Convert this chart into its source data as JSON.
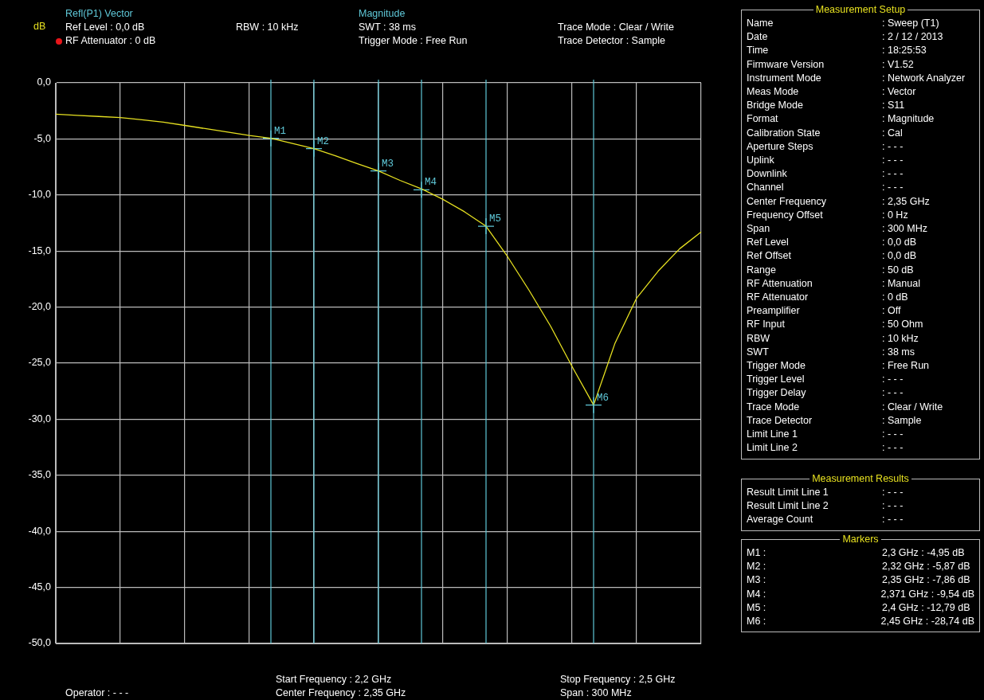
{
  "chart_data": [
    {
      "type": "line",
      "title": "Refl(P1) Vector",
      "subtitle": "Magnitude",
      "ylabel": "dB",
      "categories": [
        null,
        null,
        null,
        null,
        null,
        null,
        null,
        null,
        null,
        null,
        null,
        null,
        null,
        null,
        null,
        null,
        null,
        null,
        null,
        null,
        null,
        null,
        null,
        null,
        null,
        null,
        null,
        null,
        null,
        null,
        null
      ],
      "series": [
        {
          "color": "#e6e020",
          "values": [
            -2.8,
            -2.9,
            -3.0,
            -3.1,
            -3.3,
            -3.5,
            -3.8,
            -4.1,
            -4.4,
            -4.7,
            -4.95,
            -5.4,
            -5.87,
            -6.5,
            -7.2,
            -7.86,
            -8.7,
            -9.45,
            -10.4,
            -11.5,
            -12.79,
            -15.5,
            -18.5,
            -21.7,
            -25.3,
            -28.74,
            -23.2,
            -19.2,
            -16.8,
            -14.8,
            -13.3
          ]
        },
        {
          "type": "scatter",
          "color": "#5fc8d8",
          "marker": "cross",
          "values": [
            null,
            null,
            null,
            null,
            null,
            null,
            null,
            null,
            null,
            null,
            -4.95,
            null,
            -5.87,
            null,
            null,
            -7.86,
            null,
            -9.54,
            null,
            null,
            -12.79,
            null,
            null,
            null,
            null,
            -28.74,
            null,
            null,
            null,
            null,
            null
          ],
          "value_labels": [
            null,
            null,
            null,
            null,
            null,
            null,
            null,
            null,
            null,
            null,
            "M1",
            null,
            "M2",
            null,
            null,
            "M3",
            null,
            "M4",
            null,
            null,
            "M5",
            null,
            null,
            null,
            null,
            "M6",
            null,
            null,
            null,
            null,
            null
          ]
        }
      ],
      "ylim": [
        -50,
        0
      ],
      "yticks": [
        {
          "value": 0,
          "label": "0,0"
        },
        {
          "value": -5,
          "label": "-5,0"
        },
        {
          "value": -10,
          "label": "-10,0"
        },
        {
          "value": -15,
          "label": "-15,0"
        },
        {
          "value": -20,
          "label": "-20,0"
        },
        {
          "value": -25,
          "label": "-25,0"
        },
        {
          "value": -30,
          "label": "-30,0"
        },
        {
          "value": -35,
          "label": "-35,0"
        },
        {
          "value": -40,
          "label": "-40,0"
        },
        {
          "value": -45,
          "label": "-45,0"
        },
        {
          "value": -50,
          "label": "-50,0"
        }
      ],
      "tick_labels": "y",
      "grid": true,
      "legend": false,
      "marker": "none",
      "line_style": "solid",
      "annotations": [
        "Ref Level : 0,0 dB",
        "RF Attenuator : 0 dB",
        "RBW : 10 kHz",
        "SWT : 38 ms",
        "Trigger Mode : Free Run",
        "Trace Mode : Clear / Write",
        "Trace Detector : Sample",
        "Start Frequency : 2,2 GHz",
        "Center Frequency : 2,35 GHz",
        "Stop Frequency : 2,5 GHz",
        "Span : 300 MHz",
        "Operator : - - -"
      ]
    },
    {
      "type": "other",
      "title": "Measurement Setup",
      "annotations": [
        "Name",
        ": Sweep (T1)",
        "Date",
        ": 2 / 12 / 2013",
        "Time",
        ": 18:25:53",
        "Firmware Version",
        ": V1.52",
        "Instrument Mode",
        ": Network Analyzer",
        "Meas Mode",
        ": Vector",
        "Bridge Mode",
        ": S11",
        "Format",
        ": Magnitude",
        "Calibration State",
        ": Cal",
        "Aperture Steps",
        ": - - -",
        "Uplink",
        ": - - -",
        "Downlink",
        ": - - -",
        "Channel",
        ": - - -",
        "Center Frequency",
        ": 2,35 GHz",
        "Frequency Offset",
        ": 0 Hz",
        "Span",
        ": 300 MHz",
        "Ref Level",
        ": 0,0 dB",
        "Ref Offset",
        ": 0,0 dB",
        "Range",
        ": 50 dB",
        "RF Attenuation",
        ": Manual",
        "RF Attenuator",
        ": 0 dB",
        "Preamplifier",
        ": Off",
        "RF Input",
        ": 50 Ohm",
        "RBW",
        ": 10 kHz",
        "SWT",
        ": 38 ms",
        "Trigger Mode",
        ": Free Run",
        "Trigger Level",
        ": - - -",
        "Trigger Delay",
        ": - - -",
        "Trace Mode",
        ": Clear / Write",
        "Trace Detector",
        ": Sample",
        "Limit Line 1",
        ": - - -",
        "Limit Line 2",
        ": - - -"
      ]
    },
    {
      "type": "other",
      "title": "Measurement Results",
      "annotations": [
        "Result Limit Line 1",
        ": - - -",
        "Result Limit Line 2",
        ": - - -",
        "Average Count",
        ": - - -"
      ]
    },
    {
      "type": "other",
      "title": "Markers",
      "annotations": [
        "M1 :",
        "2,3 GHz : -4,95 dB",
        "M2 :",
        "2,32 GHz : -5,87 dB",
        "M3 :",
        "2,35 GHz : -7,86 dB",
        "M4 :",
        "2,371 GHz : -9,54 dB",
        "M5 :",
        "2,4 GHz : -12,79 dB",
        "M6 :",
        "2,45 GHz : -28,74 dB"
      ]
    }
  ]
}
